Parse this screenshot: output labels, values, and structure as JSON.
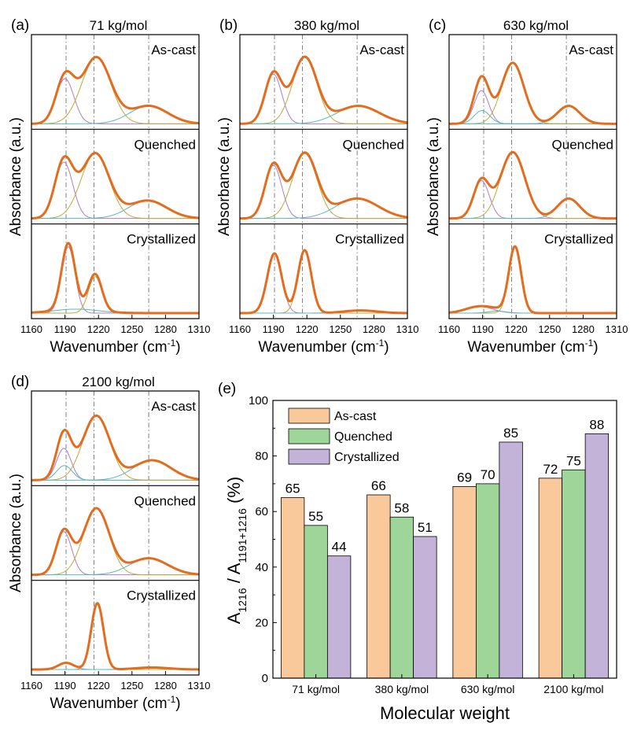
{
  "chart_data": [
    {
      "type": "line",
      "panel_label": "(a)",
      "title": "71 kg/mol",
      "xlabel": "Wavenumber (cm",
      "xlabel_sup": "-1",
      "xlabel_end": ")",
      "ylabel": "Absorbance (a.u.)",
      "xlim": [
        1160,
        1310
      ],
      "xticks": [
        "1160",
        "1190",
        "1220",
        "1250",
        "1280",
        "1310"
      ],
      "reference_lines": [
        1191,
        1216,
        1265
      ],
      "subpanels": [
        {
          "label": "As-cast",
          "peaks": [
            {
              "center": 1190,
              "height": 0.68,
              "width": 8.0,
              "color": "#b07cc6"
            },
            {
              "center": 1218,
              "height": 1.0,
              "width": 13.0,
              "color": "#bfa93a"
            },
            {
              "center": 1265,
              "height": 0.27,
              "width": 17.0,
              "color": "#57b8c0"
            }
          ]
        },
        {
          "label": "Quenched",
          "peaks": [
            {
              "center": 1189,
              "height": 0.85,
              "width": 8.0,
              "color": "#b07cc6"
            },
            {
              "center": 1217,
              "height": 0.98,
              "width": 12.5,
              "color": "#bfa93a"
            },
            {
              "center": 1264,
              "height": 0.27,
              "width": 17.0,
              "color": "#57b8c0"
            }
          ]
        },
        {
          "label": "Crystallized",
          "peaks": [
            {
              "center": 1193,
              "height": 1.0,
              "width": 6.0,
              "color": "#b07cc6"
            },
            {
              "center": 1217,
              "height": 0.55,
              "width": 6.0,
              "color": "#bfa93a"
            },
            {
              "center": 1200,
              "height": 0.06,
              "width": 20.0,
              "color": "#57b8c0"
            }
          ]
        }
      ]
    },
    {
      "type": "line",
      "panel_label": "(b)",
      "title": "380 kg/mol",
      "xlabel": "Wavenumber (cm",
      "xlabel_sup": "-1",
      "xlabel_end": ")",
      "ylabel": "Absorbance (a.u.)",
      "xlim": [
        1160,
        1310
      ],
      "xticks": [
        "1160",
        "1190",
        "1220",
        "1250",
        "1280",
        "1310"
      ],
      "reference_lines": [
        1191,
        1216,
        1265
      ],
      "subpanels": [
        {
          "label": "As-cast",
          "peaks": [
            {
              "center": 1190,
              "height": 0.75,
              "width": 7.5,
              "color": "#b07cc6"
            },
            {
              "center": 1218,
              "height": 1.0,
              "width": 11.0,
              "color": "#bfa93a"
            },
            {
              "center": 1266,
              "height": 0.27,
              "width": 19.0,
              "color": "#57b8c0"
            }
          ]
        },
        {
          "label": "Quenched",
          "peaks": [
            {
              "center": 1190,
              "height": 0.8,
              "width": 7.5,
              "color": "#b07cc6"
            },
            {
              "center": 1218,
              "height": 0.98,
              "width": 11.0,
              "color": "#bfa93a"
            },
            {
              "center": 1265,
              "height": 0.3,
              "width": 19.0,
              "color": "#57b8c0"
            }
          ]
        },
        {
          "label": "Crystallized",
          "peaks": [
            {
              "center": 1191,
              "height": 0.9,
              "width": 6.5,
              "color": "#b07cc6"
            },
            {
              "center": 1218,
              "height": 0.95,
              "width": 6.0,
              "color": "#bfa93a"
            },
            {
              "center": 1268,
              "height": 0.04,
              "width": 15.0,
              "color": "#57b8c0"
            }
          ]
        }
      ]
    },
    {
      "type": "line",
      "panel_label": "(c)",
      "title": "630 kg/mol",
      "xlabel": "Wavenumber (cm",
      "xlabel_sup": "-1",
      "xlabel_end": ")",
      "ylabel": "Absorbance (a.u.)",
      "xlim": [
        1160,
        1310
      ],
      "xticks": [
        "1160",
        "1190",
        "1220",
        "1250",
        "1280",
        "1310"
      ],
      "reference_lines": [
        1191,
        1216,
        1265
      ],
      "subpanels": [
        {
          "label": "As-cast",
          "peaks": [
            {
              "center": 1189,
              "height": 0.5,
              "width": 6.5,
              "color": "#b07cc6"
            },
            {
              "center": 1189.5,
              "height": 0.2,
              "width": 7.0,
              "color": "#57b8c0"
            },
            {
              "center": 1217,
              "height": 0.92,
              "width": 10.0,
              "color": "#bfa93a"
            },
            {
              "center": 1267,
              "height": 0.27,
              "width": 10.0,
              "color": "#57b8c0"
            }
          ]
        },
        {
          "label": "Quenched",
          "peaks": [
            {
              "center": 1189,
              "height": 0.57,
              "width": 7.0,
              "color": "#b07cc6"
            },
            {
              "center": 1217,
              "height": 1.0,
              "width": 11.0,
              "color": "#bfa93a"
            },
            {
              "center": 1267,
              "height": 0.3,
              "width": 10.0,
              "color": "#57b8c0"
            }
          ]
        },
        {
          "label": "Crystallized",
          "peaks": [
            {
              "center": 1187,
              "height": 0.1,
              "width": 12.0,
              "color": "#b07cc6"
            },
            {
              "center": 1219,
              "height": 1.0,
              "width": 5.5,
              "color": "#bfa93a"
            },
            {
              "center": 1203,
              "height": 0.03,
              "width": 8.0,
              "color": "#57b8c0"
            }
          ]
        }
      ]
    },
    {
      "type": "line",
      "panel_label": "(d)",
      "title": "2100 kg/mol",
      "xlabel": "Wavenumber (cm",
      "xlabel_sup": "-1",
      "xlabel_end": ")",
      "ylabel": "Absorbance (a.u.)",
      "xlim": [
        1160,
        1310
      ],
      "xticks": [
        "1160",
        "1190",
        "1220",
        "1250",
        "1280",
        "1310"
      ],
      "reference_lines": [
        1191,
        1216,
        1265
      ],
      "subpanels": [
        {
          "label": "As-cast",
          "peaks": [
            {
              "center": 1189,
              "height": 0.48,
              "width": 6.5,
              "color": "#b07cc6"
            },
            {
              "center": 1189.5,
              "height": 0.22,
              "width": 7.0,
              "color": "#57b8c0"
            },
            {
              "center": 1218,
              "height": 0.97,
              "width": 12.0,
              "color": "#bfa93a"
            },
            {
              "center": 1268,
              "height": 0.3,
              "width": 17.0,
              "color": "#57b8c0"
            }
          ]
        },
        {
          "label": "Quenched",
          "peaks": [
            {
              "center": 1189,
              "height": 0.65,
              "width": 7.0,
              "color": "#b07cc6"
            },
            {
              "center": 1218,
              "height": 1.0,
              "width": 11.5,
              "color": "#bfa93a"
            },
            {
              "center": 1265,
              "height": 0.25,
              "width": 17.0,
              "color": "#57b8c0"
            }
          ]
        },
        {
          "label": "Crystallized",
          "peaks": [
            {
              "center": 1191,
              "height": 0.1,
              "width": 7.0,
              "color": "#b07cc6"
            },
            {
              "center": 1219,
              "height": 1.0,
              "width": 5.5,
              "color": "#bfa93a"
            },
            {
              "center": 1268,
              "height": 0.03,
              "width": 15.0,
              "color": "#57b8c0"
            }
          ]
        }
      ]
    },
    {
      "type": "bar",
      "panel_label": "(e)",
      "categories": [
        "71 kg/mol",
        "380 kg/mol",
        "630 kg/mol",
        "2100 kg/mol"
      ],
      "series": [
        {
          "name": "As-cast",
          "values": [
            65,
            66,
            69,
            72
          ],
          "color": "#f9c99b"
        },
        {
          "name": "Quenched",
          "values": [
            55,
            58,
            70,
            75
          ],
          "color": "#9ed69a"
        },
        {
          "name": "Crystallized",
          "values": [
            44,
            51,
            85,
            88
          ],
          "color": "#c3b3d9"
        }
      ],
      "xlabel": "Molecular weight",
      "ylabel_main": "A",
      "ylabel_sub1": "1216",
      "ylabel_mid": " / A",
      "ylabel_sub2": "1191+1216",
      "ylabel_end": " (%)",
      "ylim": [
        0,
        100
      ],
      "yticks": [
        "0",
        "20",
        "40",
        "60",
        "80",
        "100"
      ],
      "legend_position": "top-left",
      "data_labels": true
    }
  ],
  "colors": {
    "envelope": "#e36c1e",
    "refline": "#808080",
    "axis": "#000000"
  }
}
